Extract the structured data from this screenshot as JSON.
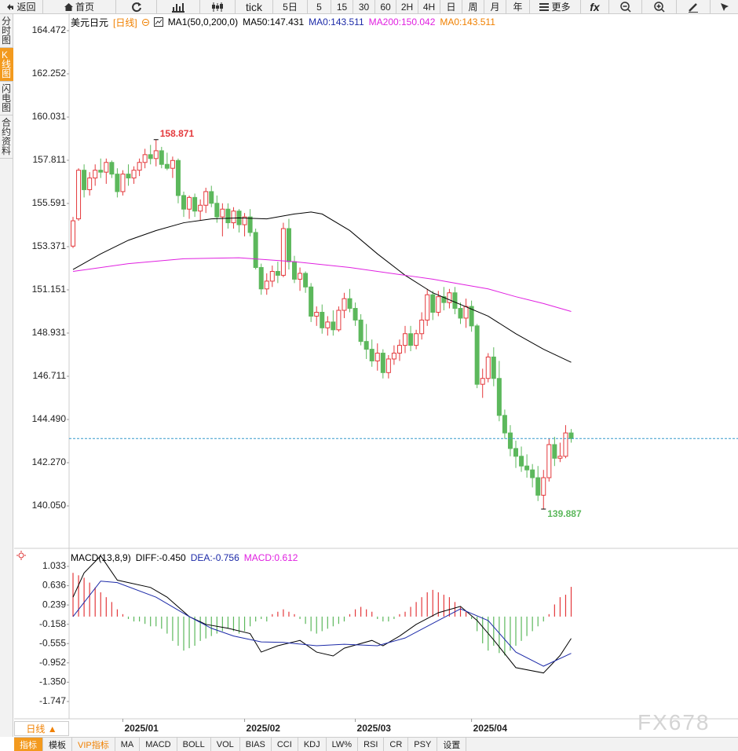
{
  "toolbar": [
    "返回",
    "首页",
    "tick",
    "5日",
    "5",
    "15",
    "30",
    "60",
    "2H",
    "4H",
    "日",
    "周",
    "月",
    "年",
    "更多",
    "fx"
  ],
  "sidebar": [
    "分时图",
    "K线图",
    "闪电图",
    "合约资料"
  ],
  "period_button": "日线 ▲",
  "bottom_tabs": [
    "指标",
    "模板",
    "VIP指标",
    "MA",
    "MACD",
    "BOLL",
    "VOL",
    "BIAS",
    "CCI",
    "KDJ",
    "LW%",
    "RSI",
    "CR",
    "PSY",
    "设置"
  ],
  "watermark": "FX678",
  "chart_data": [
    {
      "type": "candlestick",
      "title": "美元日元",
      "period": "[日线]",
      "legend": [
        "MA1(50,0,200,0)",
        "MA50:147.431",
        "MA0:143.511",
        "MA200:150.042",
        "MA0:143.511"
      ],
      "legend_colors": [
        "#000000",
        "#000000",
        "#1c2aa8",
        "#e020e0",
        "#f08000"
      ],
      "up_color": "#e4393c",
      "down_color": "#5cb85c",
      "last_line_color": "#3399cc",
      "x": [
        0,
        1,
        2,
        3,
        4,
        5,
        6,
        7,
        8,
        9,
        10,
        11,
        12,
        13,
        14,
        15,
        16,
        17,
        18,
        19,
        20,
        21,
        22,
        23,
        24,
        25,
        26,
        27,
        28,
        29,
        30,
        31,
        32,
        33,
        34,
        35,
        36,
        37,
        38,
        39,
        40,
        41,
        42,
        43,
        44,
        45,
        46,
        47,
        48,
        49,
        50,
        51,
        52,
        53,
        54,
        55,
        56,
        57,
        58,
        59,
        60,
        61,
        62,
        63,
        64,
        65,
        66,
        67,
        68,
        69,
        70,
        71,
        72,
        73,
        74,
        75,
        76,
        77,
        78,
        79,
        80,
        81,
        82,
        83,
        84,
        85,
        86,
        87,
        88,
        89,
        90
      ],
      "open": [
        153.4,
        154.8,
        157.3,
        156.3,
        156.9,
        157.3,
        157.2,
        157.7,
        157.1,
        156.2,
        157.1,
        156.9,
        157.3,
        157.7,
        158.1,
        157.9,
        158.3,
        157.6,
        157.4,
        157.8,
        156.0,
        155.3,
        155.9,
        155.2,
        155.5,
        156.2,
        155.6,
        154.9,
        155.3,
        154.6,
        155.2,
        154.5,
        154.9,
        154.1,
        152.3,
        151.2,
        151.6,
        152.1,
        151.9,
        154.3,
        152.6,
        151.7,
        152.0,
        151.3,
        149.8,
        150.0,
        149.2,
        149.5,
        149.1,
        150.1,
        150.7,
        150.2,
        149.6,
        148.5,
        148.1,
        147.5,
        147.9,
        146.9,
        147.6,
        147.9,
        148.3,
        148.9,
        148.3,
        148.9,
        149.6,
        150.9,
        150.0,
        150.8,
        150.5,
        151.0,
        150.2,
        149.7,
        150.3,
        149.3,
        146.3,
        146.6,
        147.7,
        146.6,
        144.7,
        143.8,
        143.0,
        142.6,
        142.1,
        141.9,
        141.5,
        140.6,
        141.5,
        143.2,
        142.5,
        142.6,
        143.8
      ],
      "high": [
        154.9,
        157.4,
        157.6,
        157.2,
        157.6,
        157.9,
        157.9,
        157.8,
        157.4,
        157.3,
        157.6,
        157.5,
        157.9,
        158.4,
        158.6,
        158.871,
        158.5,
        158.2,
        158.0,
        157.9,
        156.2,
        156.0,
        156.1,
        155.8,
        156.4,
        156.5,
        156.0,
        155.6,
        155.6,
        155.4,
        155.3,
        155.1,
        155.3,
        154.3,
        152.5,
        152.0,
        152.4,
        152.6,
        154.6,
        154.8,
        152.9,
        152.3,
        152.1,
        151.5,
        150.3,
        150.4,
        149.8,
        150.1,
        150.3,
        151.0,
        151.2,
        150.5,
        149.9,
        149.4,
        148.6,
        148.4,
        148.1,
        147.8,
        148.3,
        148.6,
        149.3,
        149.3,
        149.1,
        150.0,
        151.2,
        151.1,
        151.1,
        151.3,
        151.2,
        151.3,
        150.5,
        150.7,
        150.6,
        149.4,
        147.1,
        147.9,
        148.2,
        147.5,
        145.0,
        144.2,
        143.4,
        143.1,
        142.7,
        142.2,
        142.1,
        141.9,
        143.5,
        143.6,
        143.3,
        144.2,
        144.0
      ],
      "low": [
        153.3,
        154.7,
        155.9,
        156.0,
        156.5,
        156.9,
        156.6,
        156.9,
        155.9,
        156.0,
        156.5,
        156.6,
        157.0,
        157.4,
        157.6,
        157.5,
        157.4,
        157.3,
        156.9,
        155.6,
        154.9,
        154.8,
        154.9,
        154.7,
        155.1,
        155.4,
        154.6,
        153.9,
        154.3,
        154.3,
        154.1,
        153.9,
        153.9,
        152.2,
        150.9,
        150.9,
        151.3,
        151.5,
        151.8,
        152.2,
        151.5,
        151.1,
        151.0,
        149.5,
        149.3,
        148.9,
        148.8,
        148.8,
        149.0,
        149.7,
        150.0,
        149.3,
        148.3,
        147.6,
        147.2,
        147.0,
        146.6,
        146.6,
        147.3,
        147.5,
        147.9,
        148.0,
        148.1,
        148.6,
        149.3,
        149.6,
        149.8,
        150.1,
        150.2,
        149.9,
        149.4,
        149.2,
        149.0,
        146.1,
        145.6,
        146.4,
        146.2,
        144.4,
        143.5,
        142.6,
        142.0,
        141.8,
        141.5,
        141.0,
        140.3,
        139.887,
        141.3,
        142.1,
        142.3,
        142.5,
        143.3
      ],
      "close": [
        154.7,
        157.3,
        156.3,
        156.9,
        157.3,
        157.2,
        157.7,
        157.1,
        156.2,
        157.1,
        156.9,
        157.3,
        157.7,
        158.1,
        157.9,
        158.3,
        157.6,
        157.4,
        157.8,
        156.0,
        155.3,
        155.9,
        155.2,
        155.5,
        156.2,
        155.6,
        154.9,
        155.3,
        154.6,
        155.2,
        154.5,
        154.9,
        154.1,
        152.3,
        151.2,
        151.6,
        152.1,
        151.9,
        154.3,
        152.6,
        151.7,
        152.0,
        151.3,
        149.8,
        150.0,
        149.2,
        149.5,
        149.1,
        150.1,
        150.7,
        150.2,
        149.6,
        148.5,
        148.1,
        147.5,
        147.9,
        146.9,
        147.6,
        147.9,
        148.3,
        148.9,
        148.3,
        148.9,
        149.6,
        150.9,
        150.0,
        150.8,
        150.5,
        151.0,
        150.2,
        149.7,
        150.3,
        149.3,
        146.3,
        146.6,
        147.7,
        146.6,
        144.7,
        143.8,
        143.0,
        142.6,
        142.1,
        141.9,
        141.5,
        140.6,
        141.5,
        143.2,
        142.5,
        142.6,
        143.8,
        143.511
      ],
      "high_label": "158.871",
      "low_label": "139.887",
      "series": [
        {
          "color": "#000000",
          "x": [
            0,
            5,
            10,
            15,
            20,
            25,
            30,
            35,
            40,
            43,
            45,
            50,
            55,
            60,
            65,
            70,
            75,
            80,
            85,
            90
          ],
          "values": [
            152.2,
            153.0,
            153.7,
            154.2,
            154.6,
            154.8,
            154.85,
            154.8,
            155.05,
            155.15,
            155.05,
            154.2,
            153.0,
            151.9,
            151.0,
            150.4,
            149.8,
            148.9,
            148.1,
            147.431
          ]
        },
        {
          "color": "#e020e0",
          "x": [
            0,
            10,
            20,
            30,
            40,
            50,
            60,
            65,
            70,
            75,
            80,
            85,
            90
          ],
          "values": [
            152.1,
            152.5,
            152.75,
            152.8,
            152.6,
            152.3,
            151.9,
            151.7,
            151.45,
            151.2,
            150.8,
            150.45,
            150.042
          ]
        }
      ],
      "xlim": [
        -0.71,
        120.14
      ],
      "ylim": [
        137.87,
        165.32
      ],
      "yticks": [
        164.472,
        162.252,
        160.031,
        157.811,
        155.591,
        153.371,
        151.151,
        148.931,
        146.711,
        {
          "value": 144.49,
          "label": "144.490"
        },
        {
          "value": 142.27,
          "label": "142.270"
        },
        {
          "value": 140.05,
          "label": "140.050"
        }
      ],
      "grid": false
    },
    {
      "type": "macd",
      "title": "MACD(13,8,9)",
      "legend": [
        "DIFF:-0.450",
        "DEA:-0.756",
        "MACD:0.612"
      ],
      "legend_colors": [
        "#000000",
        "#1c2aa8",
        "#e020e0"
      ],
      "up_color": "#e4393c",
      "down_color": "#5cb85c",
      "x": [
        0,
        1,
        2,
        3,
        4,
        5,
        6,
        7,
        8,
        9,
        10,
        11,
        12,
        13,
        14,
        15,
        16,
        17,
        18,
        19,
        20,
        21,
        22,
        23,
        24,
        25,
        26,
        27,
        28,
        29,
        30,
        31,
        32,
        33,
        34,
        35,
        36,
        37,
        38,
        39,
        40,
        41,
        42,
        43,
        44,
        45,
        46,
        47,
        48,
        49,
        50,
        51,
        52,
        53,
        54,
        55,
        56,
        57,
        58,
        59,
        60,
        61,
        62,
        63,
        64,
        65,
        66,
        67,
        68,
        69,
        70,
        71,
        72,
        73,
        74,
        75,
        76,
        77,
        78,
        79,
        80,
        81,
        82,
        83,
        84,
        85,
        86,
        87,
        88,
        89,
        90
      ],
      "values": [
        0.9,
        0.85,
        0.8,
        0.7,
        0.6,
        0.5,
        0.4,
        0.3,
        0.15,
        0.05,
        -0.05,
        -0.1,
        -0.1,
        -0.15,
        -0.2,
        -0.2,
        -0.25,
        -0.35,
        -0.5,
        -0.6,
        -0.7,
        -0.65,
        -0.6,
        -0.5,
        -0.45,
        -0.4,
        -0.35,
        -0.3,
        -0.25,
        -0.3,
        -0.35,
        -0.3,
        -0.2,
        -0.1,
        -0.05,
        -0.1,
        0.05,
        0.1,
        0.15,
        0.1,
        0.05,
        -0.05,
        -0.15,
        -0.3,
        -0.35,
        -0.3,
        -0.25,
        -0.2,
        -0.15,
        -0.1,
        0.05,
        0.15,
        0.2,
        0.15,
        0.1,
        -0.05,
        -0.1,
        -0.1,
        -0.05,
        0.05,
        0.1,
        0.2,
        0.3,
        0.4,
        0.5,
        0.55,
        0.5,
        0.45,
        0.4,
        0.3,
        0.2,
        0.1,
        -0.05,
        -0.3,
        -0.55,
        -0.7,
        -0.6,
        -0.75,
        -0.8,
        -0.7,
        -0.6,
        -0.5,
        -0.4,
        -0.3,
        -0.2,
        -0.1,
        0.05,
        0.25,
        0.4,
        0.45,
        0.612
      ],
      "series": [
        {
          "color": "#000000",
          "x": [
            0,
            2,
            5,
            8,
            14,
            17,
            21,
            24,
            28,
            32,
            34,
            37,
            41,
            44,
            47,
            49,
            54,
            56,
            59,
            62,
            66,
            70,
            73,
            76,
            80,
            85,
            88,
            90
          ],
          "values": [
            0.4,
            0.9,
            1.25,
            0.75,
            0.6,
            0.4,
            0.0,
            -0.16,
            -0.24,
            -0.35,
            -0.73,
            -0.6,
            -0.49,
            -0.73,
            -0.81,
            -0.65,
            -0.49,
            -0.6,
            -0.4,
            -0.16,
            0.08,
            0.21,
            -0.08,
            -0.48,
            -1.05,
            -1.16,
            -0.8,
            -0.45
          ]
        },
        {
          "color": "#1c2aa8",
          "x": [
            0,
            5,
            8,
            15,
            21,
            25,
            29,
            34,
            38,
            44,
            49,
            55,
            60,
            66,
            70,
            75,
            80,
            85,
            90
          ],
          "values": [
            0.0,
            0.73,
            0.7,
            0.4,
            0.0,
            -0.24,
            -0.4,
            -0.52,
            -0.53,
            -0.6,
            -0.57,
            -0.6,
            -0.44,
            -0.08,
            0.16,
            -0.08,
            -0.73,
            -1.02,
            -0.756
          ]
        }
      ],
      "xlim": [
        -0.71,
        120.14
      ],
      "ylim": [
        -2.103,
        1.405
      ],
      "xticks": [
        {
          "value": 9,
          "label": "2025/01"
        },
        {
          "value": 31,
          "label": "2025/02"
        },
        {
          "value": 51,
          "label": "2025/03"
        },
        {
          "value": 72,
          "label": "2025/04"
        }
      ],
      "yticks": [
        1.033,
        0.636,
        0.239,
        -0.158,
        -0.555,
        -0.952,
        {
          "value": -1.35,
          "label": "-1.350"
        },
        -1.747
      ],
      "grid": false
    }
  ]
}
